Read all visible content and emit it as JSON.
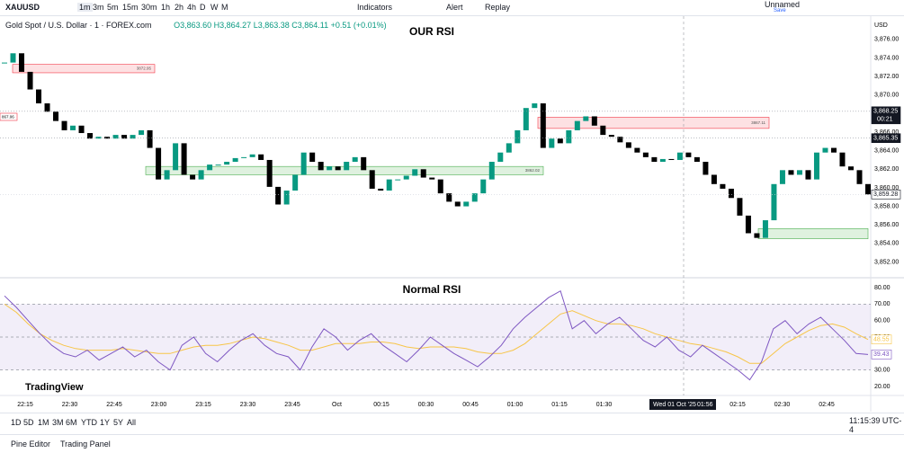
{
  "toolbar": {
    "symbol": "XAUUSD",
    "intervals": [
      "1m",
      "3m",
      "5m",
      "15m",
      "30m",
      "1h",
      "2h",
      "4h",
      "D",
      "W",
      "M"
    ],
    "indicators": "Indicators",
    "alert": "Alert",
    "replay": "Replay",
    "layout_name": "Unnamed",
    "save": "Save"
  },
  "legend": {
    "instrument": "Gold Spot / U.S. Dollar · 1 · FOREX.com",
    "open": "O3,863.60",
    "high": "H3,864.27",
    "low": "L3,863.38",
    "close": "C3,864.11",
    "change": "+0.51 (+0.01%)"
  },
  "price_pane": {
    "title": "OUR RSI",
    "currency": "USD",
    "ylim": [
      3850.4,
      3878.5
    ],
    "yticks": [
      {
        "value": 3876,
        "label": "3,876.00"
      },
      {
        "value": 3874,
        "label": "3,874.00"
      },
      {
        "value": 3872,
        "label": "3,872.00"
      },
      {
        "value": 3870,
        "label": "3,870.00"
      },
      {
        "value": 3868,
        "label": "3,868.00"
      },
      {
        "value": 3866,
        "label": "3,866.00"
      },
      {
        "value": 3864,
        "label": "3,864.00"
      },
      {
        "value": 3862,
        "label": "3,862.00"
      },
      {
        "value": 3860,
        "label": "3,860.00"
      },
      {
        "value": 3858,
        "label": "3,858.00"
      },
      {
        "value": 3856,
        "label": "3,856.00"
      },
      {
        "value": 3854,
        "label": "3,854.00"
      },
      {
        "value": 3852,
        "label": "3,852.00"
      }
    ],
    "closes": [
      3873.5,
      3874.5,
      3872.5,
      3870.6,
      3869.1,
      3868.2,
      3867.2,
      3866.2,
      3866.7,
      3865.9,
      3865.3,
      3865.5,
      3865.3,
      3865.7,
      3865.3,
      3865.7,
      3866.2,
      3864.3,
      3860.9,
      3861.9,
      3864.8,
      3861.4,
      3860.9,
      3861.9,
      3862.5,
      3862.5,
      3862.8,
      3863.2,
      3863.3,
      3863.6,
      3863,
      3860.1,
      3858.2,
      3859.7,
      3861.4,
      3863.8,
      3862.8,
      3861.9,
      3862.3,
      3861.9,
      3862.8,
      3863.3,
      3861.9,
      3859.9,
      3859.7,
      3860.9,
      3860.9,
      3861.3,
      3862,
      3861.1,
      3860.9,
      3859.4,
      3858.5,
      3858,
      3858.5,
      3859.4,
      3860.9,
      3862.8,
      3863.8,
      3864.8,
      3866.2,
      3868.6,
      3869.1,
      3864.3,
      3865.3,
      3864.8,
      3866.2,
      3867.2,
      3867.7,
      3866.7,
      3865.7,
      3865.5,
      3864.9,
      3864.3,
      3863.8,
      3863.3,
      3862.8,
      3863.1,
      3863,
      3863.8,
      3863.3,
      3862.8,
      3861.4,
      3860.4,
      3859.9,
      3858.9,
      3857,
      3855.1,
      3854.6,
      3856.5,
      3860.4,
      3861.9,
      3861.4,
      3861.9,
      3860.9,
      3863.8,
      3864.3,
      3863.8,
      3862.3,
      3861.9,
      3860.4,
      3859.28
    ],
    "zones": [
      {
        "low": 3872.4,
        "high": 3873.3,
        "label": "3872.95",
        "kind": "supply"
      },
      {
        "low": 3866.4,
        "high": 3867.6,
        "label": "3867.11",
        "kind": "supply"
      },
      {
        "low": 3861.4,
        "high": 3862.3,
        "label": "3862.02",
        "kind": "demand"
      },
      {
        "low": 3854.5,
        "high": 3855.6,
        "kind": "demand"
      }
    ],
    "left_label": "867.06",
    "tags": [
      {
        "value": 3868.25,
        "label": "3,868.25",
        "sub": "00:21"
      },
      {
        "value": 3865.35,
        "label": "3,865.35"
      },
      {
        "value": 3859.28,
        "label": "3,859.28"
      }
    ]
  },
  "rsi_pane": {
    "title": "Normal RSI",
    "ylim": [
      14.5,
      85.5
    ],
    "yticks": [
      {
        "value": 80,
        "label": "80.00"
      },
      {
        "value": 70,
        "label": "70.00"
      },
      {
        "value": 60,
        "label": "60.00"
      },
      {
        "value": 50,
        "label": "50.00"
      },
      {
        "value": 40,
        "label": "40.00"
      },
      {
        "value": 30,
        "label": "30.00"
      },
      {
        "value": 20,
        "label": "20.00"
      }
    ],
    "levels": [
      70,
      50,
      30
    ],
    "rsi": [
      75,
      68,
      60,
      52,
      45,
      40,
      38,
      42,
      36,
      40,
      44,
      38,
      42,
      35,
      30,
      45,
      50,
      40,
      35,
      42,
      48,
      52,
      45,
      40,
      38,
      30,
      44,
      55,
      50,
      42,
      48,
      52,
      45,
      40,
      35,
      42,
      50,
      45,
      40,
      36,
      32,
      38,
      45,
      55,
      62,
      68,
      74,
      78,
      55,
      60,
      52,
      58,
      62,
      55,
      48,
      44,
      50,
      42,
      38,
      45,
      40,
      35,
      30,
      24,
      35,
      55,
      60,
      52,
      58,
      62,
      55,
      48,
      40,
      39.43
    ],
    "rsi_label": "39.43",
    "ma": [
      70,
      65,
      58,
      52,
      48,
      45,
      43,
      42,
      42,
      42,
      43,
      42,
      41,
      40,
      40,
      42,
      44,
      45,
      45,
      46,
      48,
      50,
      49,
      47,
      45,
      42,
      42,
      44,
      46,
      46,
      46,
      47,
      47,
      46,
      44,
      43,
      44,
      44,
      44,
      43,
      41,
      40,
      40,
      42,
      46,
      52,
      58,
      64,
      66,
      63,
      60,
      58,
      58,
      57,
      55,
      52,
      50,
      48,
      46,
      45,
      43,
      41,
      38,
      34,
      34,
      40,
      46,
      50,
      54,
      57,
      58,
      56,
      52,
      48.55
    ],
    "ma_label": "48.55"
  },
  "time_axis": {
    "labels": [
      "22:15",
      "22:30",
      "22:45",
      "23:00",
      "23:15",
      "23:30",
      "23:45",
      "Oct",
      "00:15",
      "00:30",
      "00:45",
      "01:00",
      "01:15",
      "01:30",
      null,
      null,
      "02:15",
      "02:30",
      "02:45"
    ],
    "crosshair": "Wed 01 Oct '25",
    "crosshair_time": "01:56"
  },
  "logo": "TradingView",
  "ranges": [
    "1D",
    "5D",
    "1M",
    "3M",
    "6M",
    "YTD",
    "1Y",
    "5Y",
    "All"
  ],
  "clock": "11:15:39 UTC-4",
  "panel_tabs": [
    "Pine Editor",
    "Trading Panel"
  ]
}
